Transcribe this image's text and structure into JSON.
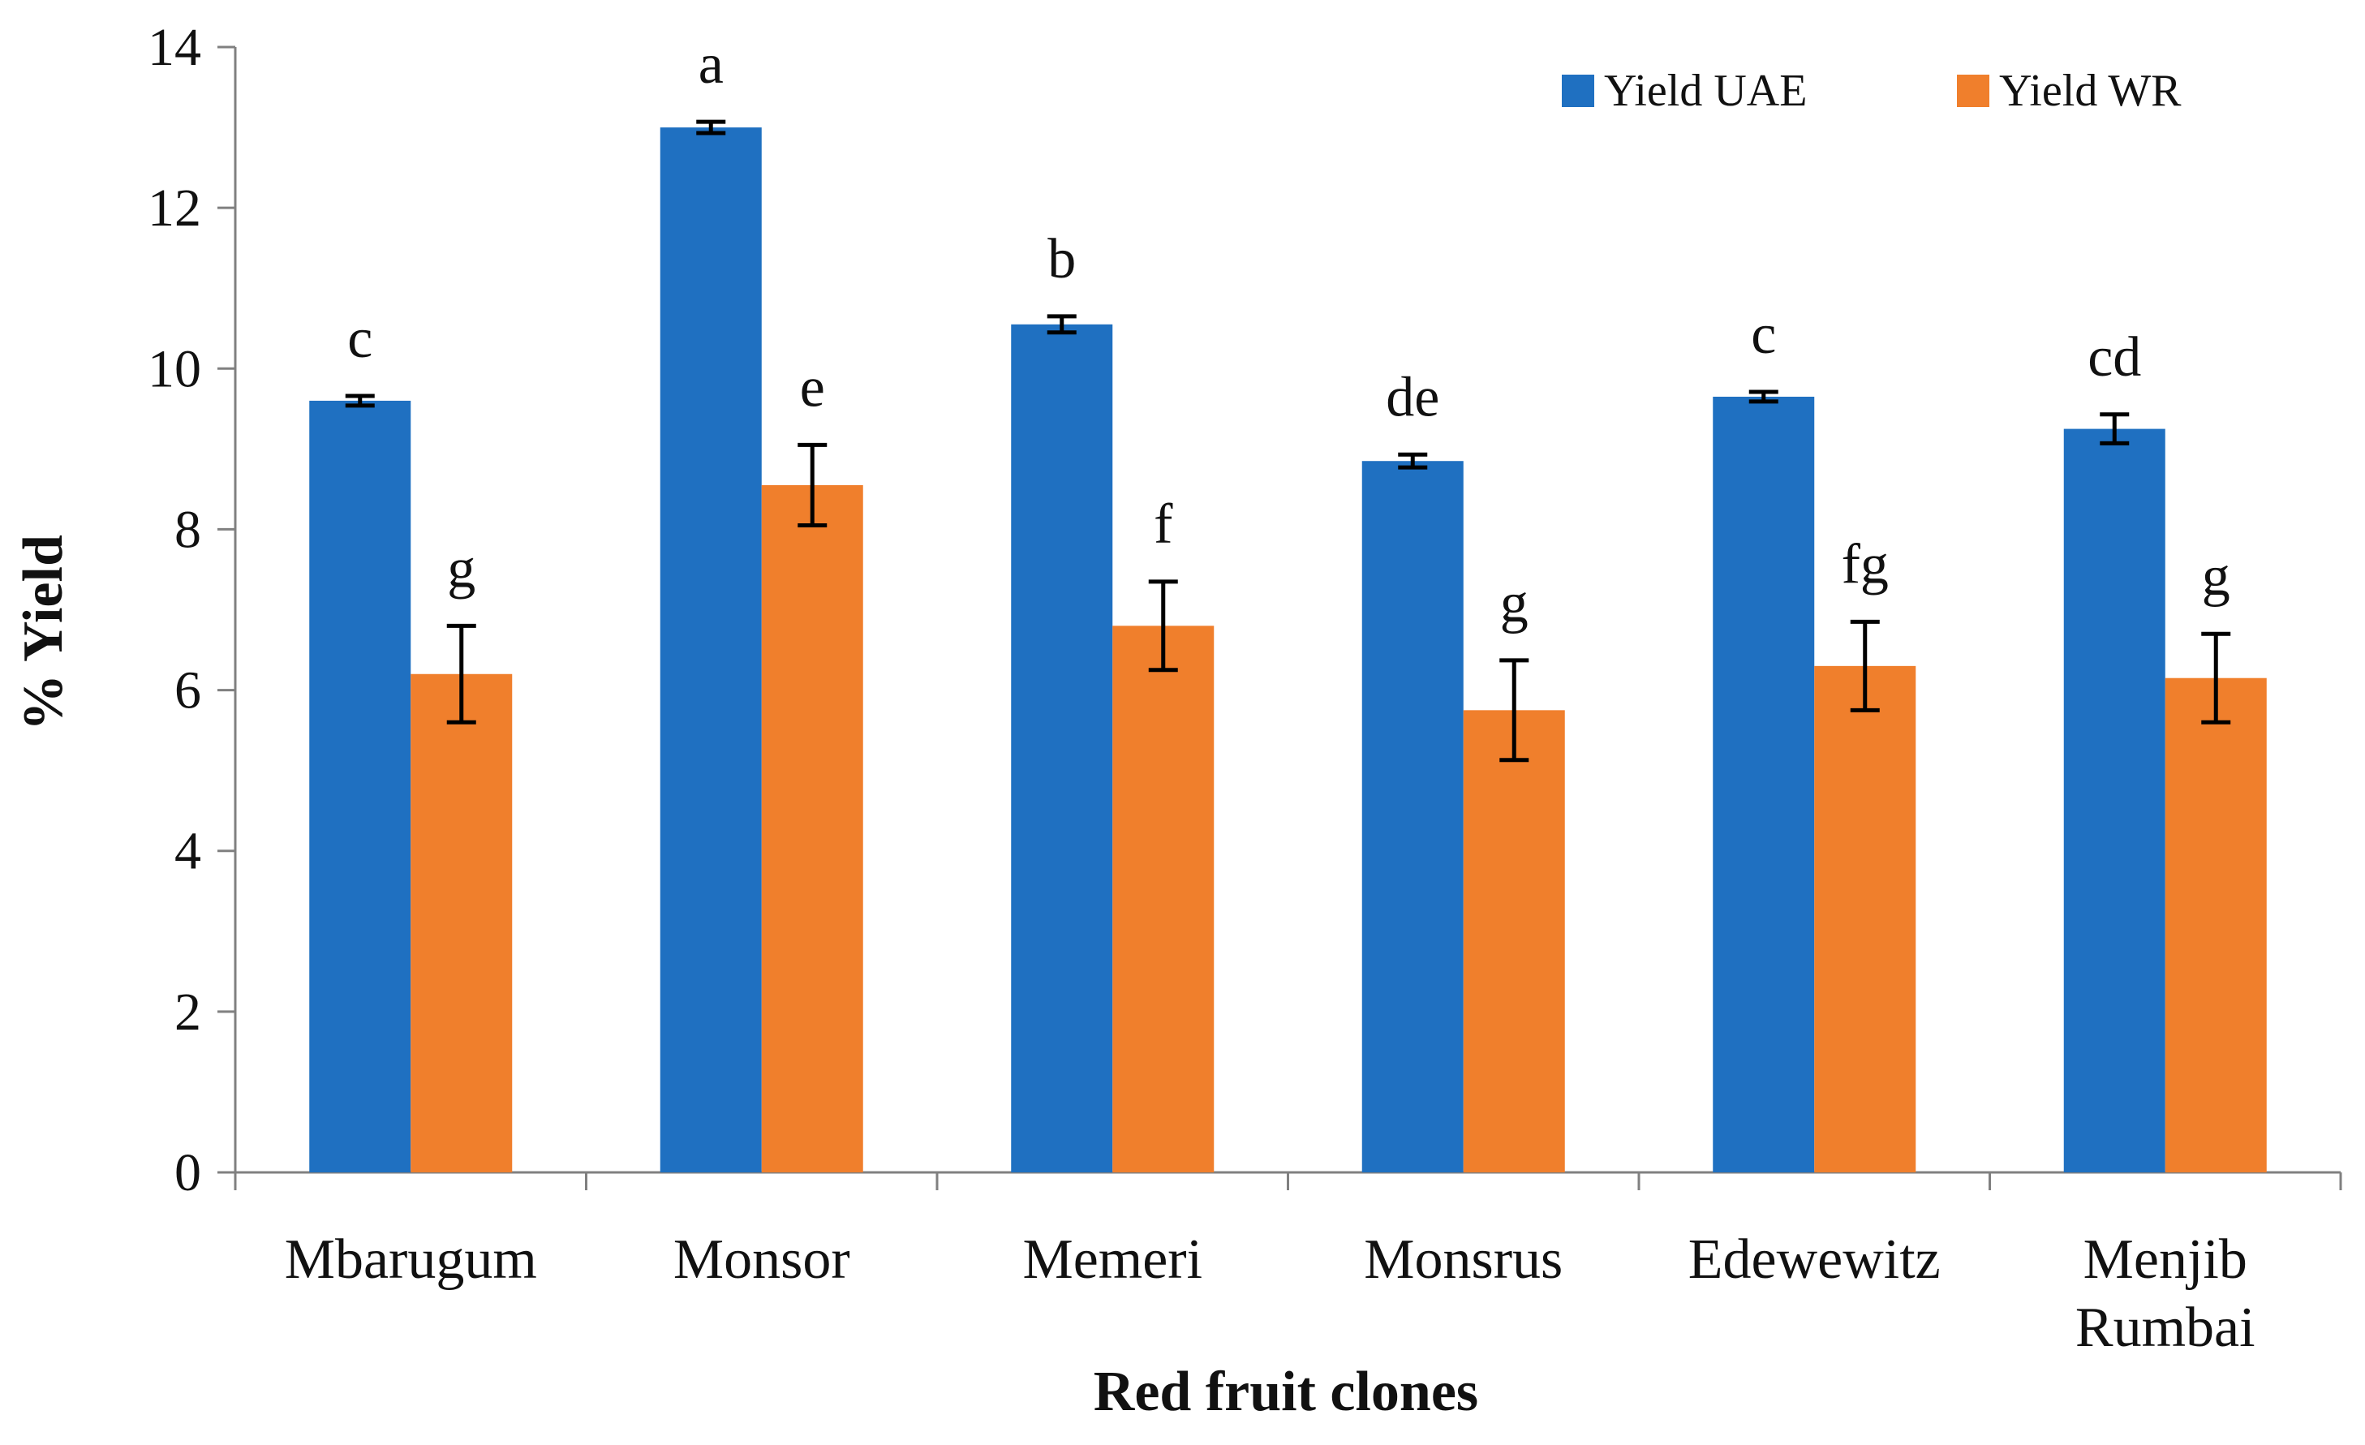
{
  "chart_data": {
    "type": "bar",
    "title": "",
    "xlabel": "Red fruit clones",
    "ylabel": "% Yield",
    "ylim": [
      0,
      14
    ],
    "yticks": [
      0,
      2,
      4,
      6,
      8,
      10,
      12,
      14
    ],
    "grid": false,
    "legend_position": "top-right",
    "categories": [
      "Mbarugum",
      "Monsor",
      "Memeri",
      "Monsrus",
      "Edewewitz",
      "Menjib Rumbai"
    ],
    "series": [
      {
        "name": "Yield UAE",
        "color": "#1F70C1",
        "values": [
          9.6,
          13.0,
          10.55,
          8.85,
          9.65,
          9.25
        ],
        "errors": [
          0.06,
          0.07,
          0.1,
          0.08,
          0.06,
          0.18
        ],
        "labels": [
          "c",
          "a",
          "b",
          "de",
          "c",
          "cd"
        ]
      },
      {
        "name": "Yield  WR",
        "color": "#F07F2C",
        "values": [
          6.2,
          8.55,
          6.8,
          5.75,
          6.3,
          6.15
        ],
        "errors": [
          0.6,
          0.5,
          0.55,
          0.62,
          0.55,
          0.55
        ],
        "labels": [
          "g",
          "e",
          "f",
          "g",
          "fg",
          "g"
        ]
      }
    ]
  }
}
